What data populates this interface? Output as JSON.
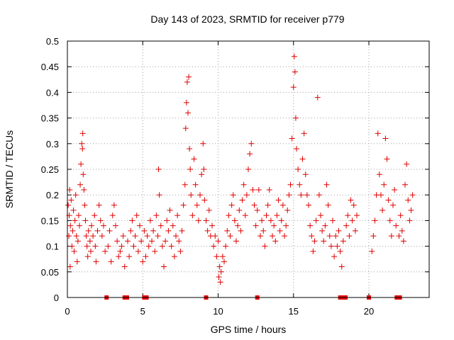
{
  "chart_data": {
    "type": "scatter",
    "title": "Day 143 of 2023, SRMTID for receiver p779",
    "xlabel": "GPS time / hours",
    "ylabel": "SRMTID / TECUs",
    "xlim": [
      0,
      24
    ],
    "ylim": [
      0,
      0.5
    ],
    "xticks": [
      0,
      5,
      10,
      15,
      20
    ],
    "yticks": [
      0,
      0.05,
      0.1,
      0.15,
      0.2,
      0.25,
      0.3,
      0.35,
      0.4,
      0.45,
      0.5
    ],
    "grid": true,
    "marker": "+",
    "color": "#e00000",
    "zero_markers_hours": [
      2.6,
      3.8,
      3.95,
      5.1,
      5.25,
      9.2,
      12.6,
      18.1,
      18.3,
      18.45,
      20.0,
      21.85,
      21.95,
      22.05
    ],
    "series": [
      {
        "name": "SRMTID",
        "points": [
          [
            0.05,
            0.18
          ],
          [
            0.1,
            0.12
          ],
          [
            0.12,
            0.16
          ],
          [
            0.15,
            0.21
          ],
          [
            0.18,
            0.06
          ],
          [
            0.2,
            0.14
          ],
          [
            0.25,
            0.19
          ],
          [
            0.3,
            0.1
          ],
          [
            0.35,
            0.13
          ],
          [
            0.4,
            0.17
          ],
          [
            0.45,
            0.09
          ],
          [
            0.5,
            0.15
          ],
          [
            0.55,
            0.2
          ],
          [
            0.6,
            0.12
          ],
          [
            0.65,
            0.07
          ],
          [
            0.7,
            0.11
          ],
          [
            0.75,
            0.16
          ],
          [
            0.8,
            0.14
          ],
          [
            0.85,
            0.22
          ],
          [
            0.9,
            0.26
          ],
          [
            0.95,
            0.3
          ],
          [
            1.0,
            0.29
          ],
          [
            1.02,
            0.32
          ],
          [
            1.05,
            0.24
          ],
          [
            1.1,
            0.21
          ],
          [
            1.15,
            0.18
          ],
          [
            1.2,
            0.15
          ],
          [
            1.25,
            0.12
          ],
          [
            1.3,
            0.1
          ],
          [
            1.35,
            0.08
          ],
          [
            1.4,
            0.13
          ],
          [
            1.5,
            0.11
          ],
          [
            1.55,
            0.09
          ],
          [
            1.6,
            0.14
          ],
          [
            1.7,
            0.12
          ],
          [
            1.8,
            0.16
          ],
          [
            1.85,
            0.1
          ],
          [
            1.9,
            0.07
          ],
          [
            2.0,
            0.13
          ],
          [
            2.1,
            0.18
          ],
          [
            2.2,
            0.15
          ],
          [
            2.3,
            0.12
          ],
          [
            2.4,
            0.14
          ],
          [
            2.5,
            0.09
          ],
          [
            2.7,
            0.1
          ],
          [
            2.8,
            0.13
          ],
          [
            2.9,
            0.07
          ],
          [
            3.0,
            0.16
          ],
          [
            3.1,
            0.18
          ],
          [
            3.2,
            0.14
          ],
          [
            3.3,
            0.11
          ],
          [
            3.4,
            0.08
          ],
          [
            3.5,
            0.09
          ],
          [
            3.6,
            0.1
          ],
          [
            3.7,
            0.12
          ],
          [
            3.8,
            0.06
          ],
          [
            4.0,
            0.11
          ],
          [
            4.1,
            0.08
          ],
          [
            4.2,
            0.13
          ],
          [
            4.3,
            0.15
          ],
          [
            4.4,
            0.1
          ],
          [
            4.5,
            0.12
          ],
          [
            4.6,
            0.16
          ],
          [
            4.7,
            0.09
          ],
          [
            4.8,
            0.14
          ],
          [
            4.9,
            0.11
          ],
          [
            5.0,
            0.07
          ],
          [
            5.1,
            0.13
          ],
          [
            5.2,
            0.08
          ],
          [
            5.3,
            0.12
          ],
          [
            5.4,
            0.1
          ],
          [
            5.5,
            0.15
          ],
          [
            5.6,
            0.11
          ],
          [
            5.7,
            0.13
          ],
          [
            5.8,
            0.09
          ],
          [
            5.9,
            0.16
          ],
          [
            6.0,
            0.12
          ],
          [
            6.05,
            0.25
          ],
          [
            6.1,
            0.2
          ],
          [
            6.2,
            0.14
          ],
          [
            6.3,
            0.1
          ],
          [
            6.4,
            0.06
          ],
          [
            6.5,
            0.11
          ],
          [
            6.6,
            0.15
          ],
          [
            6.7,
            0.13
          ],
          [
            6.8,
            0.17
          ],
          [
            6.9,
            0.1
          ],
          [
            7.0,
            0.14
          ],
          [
            7.1,
            0.08
          ],
          [
            7.2,
            0.12
          ],
          [
            7.3,
            0.16
          ],
          [
            7.4,
            0.11
          ],
          [
            7.5,
            0.09
          ],
          [
            7.6,
            0.13
          ],
          [
            7.7,
            0.18
          ],
          [
            7.8,
            0.22
          ],
          [
            7.85,
            0.33
          ],
          [
            7.9,
            0.38
          ],
          [
            7.95,
            0.42
          ],
          [
            8.0,
            0.36
          ],
          [
            8.05,
            0.43
          ],
          [
            8.1,
            0.29
          ],
          [
            8.15,
            0.25
          ],
          [
            8.2,
            0.2
          ],
          [
            8.3,
            0.16
          ],
          [
            8.4,
            0.27
          ],
          [
            8.5,
            0.22
          ],
          [
            8.6,
            0.18
          ],
          [
            8.7,
            0.15
          ],
          [
            8.8,
            0.2
          ],
          [
            8.9,
            0.24
          ],
          [
            9.0,
            0.3
          ],
          [
            9.05,
            0.25
          ],
          [
            9.1,
            0.19
          ],
          [
            9.2,
            0.15
          ],
          [
            9.3,
            0.13
          ],
          [
            9.4,
            0.17
          ],
          [
            9.5,
            0.12
          ],
          [
            9.6,
            0.14
          ],
          [
            9.7,
            0.1
          ],
          [
            9.8,
            0.12
          ],
          [
            9.9,
            0.08
          ],
          [
            10.0,
            0.11
          ],
          [
            10.05,
            0.04
          ],
          [
            10.1,
            0.06
          ],
          [
            10.15,
            0.03
          ],
          [
            10.2,
            0.05
          ],
          [
            10.3,
            0.08
          ],
          [
            10.4,
            0.07
          ],
          [
            10.5,
            0.1
          ],
          [
            10.6,
            0.13
          ],
          [
            10.7,
            0.16
          ],
          [
            10.8,
            0.12
          ],
          [
            10.9,
            0.18
          ],
          [
            11.0,
            0.2
          ],
          [
            11.1,
            0.15
          ],
          [
            11.2,
            0.11
          ],
          [
            11.3,
            0.14
          ],
          [
            11.4,
            0.17
          ],
          [
            11.5,
            0.13
          ],
          [
            11.6,
            0.19
          ],
          [
            11.7,
            0.22
          ],
          [
            11.8,
            0.16
          ],
          [
            11.9,
            0.2
          ],
          [
            12.0,
            0.25
          ],
          [
            12.1,
            0.28
          ],
          [
            12.2,
            0.3
          ],
          [
            12.3,
            0.21
          ],
          [
            12.4,
            0.18
          ],
          [
            12.5,
            0.14
          ],
          [
            12.6,
            0.17
          ],
          [
            12.7,
            0.21
          ],
          [
            12.8,
            0.12
          ],
          [
            12.9,
            0.15
          ],
          [
            13.0,
            0.13
          ],
          [
            13.1,
            0.1
          ],
          [
            13.2,
            0.16
          ],
          [
            13.3,
            0.18
          ],
          [
            13.4,
            0.21
          ],
          [
            13.5,
            0.15
          ],
          [
            13.6,
            0.12
          ],
          [
            13.7,
            0.14
          ],
          [
            13.8,
            0.11
          ],
          [
            13.9,
            0.16
          ],
          [
            14.0,
            0.19
          ],
          [
            14.1,
            0.13
          ],
          [
            14.2,
            0.15
          ],
          [
            14.3,
            0.18
          ],
          [
            14.4,
            0.12
          ],
          [
            14.5,
            0.14
          ],
          [
            14.6,
            0.17
          ],
          [
            14.7,
            0.2
          ],
          [
            14.8,
            0.22
          ],
          [
            14.9,
            0.31
          ],
          [
            15.0,
            0.41
          ],
          [
            15.05,
            0.47
          ],
          [
            15.1,
            0.44
          ],
          [
            15.15,
            0.35
          ],
          [
            15.2,
            0.29
          ],
          [
            15.3,
            0.25
          ],
          [
            15.4,
            0.22
          ],
          [
            15.5,
            0.2
          ],
          [
            15.6,
            0.27
          ],
          [
            15.7,
            0.32
          ],
          [
            15.8,
            0.24
          ],
          [
            15.9,
            0.2
          ],
          [
            16.0,
            0.18
          ],
          [
            16.1,
            0.14
          ],
          [
            16.2,
            0.12
          ],
          [
            16.3,
            0.09
          ],
          [
            16.4,
            0.11
          ],
          [
            16.5,
            0.15
          ],
          [
            16.6,
            0.39
          ],
          [
            16.7,
            0.2
          ],
          [
            16.8,
            0.16
          ],
          [
            16.9,
            0.13
          ],
          [
            17.0,
            0.11
          ],
          [
            17.1,
            0.14
          ],
          [
            17.2,
            0.22
          ],
          [
            17.3,
            0.18
          ],
          [
            17.4,
            0.12
          ],
          [
            17.5,
            0.1
          ],
          [
            17.6,
            0.15
          ],
          [
            17.7,
            0.08
          ],
          [
            17.8,
            0.12
          ],
          [
            17.9,
            0.1
          ],
          [
            18.0,
            0.13
          ],
          [
            18.1,
            0.09
          ],
          [
            18.2,
            0.06
          ],
          [
            18.3,
            0.11
          ],
          [
            18.5,
            0.14
          ],
          [
            18.6,
            0.16
          ],
          [
            18.7,
            0.12
          ],
          [
            18.8,
            0.19
          ],
          [
            18.9,
            0.15
          ],
          [
            19.0,
            0.18
          ],
          [
            19.1,
            0.13
          ],
          [
            19.2,
            0.16
          ],
          [
            20.2,
            0.09
          ],
          [
            20.3,
            0.12
          ],
          [
            20.4,
            0.15
          ],
          [
            20.5,
            0.2
          ],
          [
            20.6,
            0.32
          ],
          [
            20.7,
            0.24
          ],
          [
            20.8,
            0.2
          ],
          [
            20.9,
            0.17
          ],
          [
            21.0,
            0.22
          ],
          [
            21.1,
            0.31
          ],
          [
            21.2,
            0.27
          ],
          [
            21.3,
            0.19
          ],
          [
            21.4,
            0.15
          ],
          [
            21.5,
            0.12
          ],
          [
            21.6,
            0.18
          ],
          [
            21.7,
            0.21
          ],
          [
            21.8,
            0.14
          ],
          [
            22.0,
            0.12
          ],
          [
            22.1,
            0.16
          ],
          [
            22.2,
            0.13
          ],
          [
            22.3,
            0.11
          ],
          [
            22.4,
            0.22
          ],
          [
            22.5,
            0.26
          ],
          [
            22.6,
            0.19
          ],
          [
            22.7,
            0.15
          ],
          [
            22.8,
            0.17
          ],
          [
            22.9,
            0.2
          ]
        ]
      }
    ]
  }
}
